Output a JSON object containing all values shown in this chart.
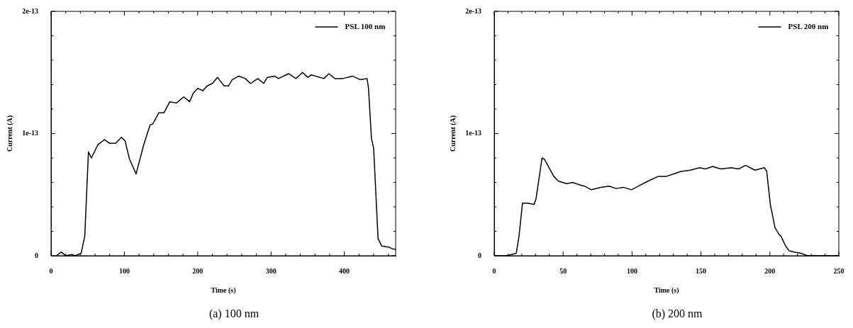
{
  "chart_data": [
    {
      "type": "line",
      "xlabel": "Time (s)",
      "ylabel": "Current (A)",
      "legend": "top right",
      "marker": "none",
      "line_style": "solid",
      "annotations": [
        "(a)  100 nm"
      ],
      "xlim": [
        0,
        470
      ],
      "ylim": [
        0,
        2e-13
      ],
      "xticks": [
        0,
        {
          "value": 20,
          "label": null
        },
        {
          "value": 40,
          "label": null
        },
        {
          "value": 60,
          "label": null
        },
        {
          "value": 80,
          "label": null
        },
        100,
        {
          "value": 120,
          "label": null
        },
        {
          "value": 140,
          "label": null
        },
        {
          "value": 160,
          "label": null
        },
        {
          "value": 180,
          "label": null
        },
        200,
        {
          "value": 220,
          "label": null
        },
        {
          "value": 240,
          "label": null
        },
        {
          "value": 260,
          "label": null
        },
        {
          "value": 280,
          "label": null
        },
        300,
        {
          "value": 320,
          "label": null
        },
        {
          "value": 340,
          "label": null
        },
        {
          "value": 360,
          "label": null
        },
        {
          "value": 380,
          "label": null
        },
        400,
        {
          "value": 420,
          "label": null
        },
        {
          "value": 440,
          "label": null
        },
        {
          "value": 460,
          "label": null
        }
      ],
      "yticks": [
        {
          "value": 0,
          "label": "0"
        },
        {
          "value": 2e-14,
          "label": null
        },
        {
          "value": 4e-14,
          "label": null
        },
        {
          "value": 6e-14,
          "label": null
        },
        {
          "value": 8e-14,
          "label": null
        },
        {
          "value": 1e-13,
          "label": "1e-13"
        },
        {
          "value": 1.2e-13,
          "label": null
        },
        {
          "value": 1.4e-13,
          "label": null
        },
        {
          "value": 1.6e-13,
          "label": null
        },
        {
          "value": 1.8e-13,
          "label": null
        },
        {
          "value": 2e-13,
          "label": "2e-13"
        }
      ],
      "series": [
        {
          "name": "PSL 100 nm",
          "color": "#000000",
          "x": [
            7,
            14,
            20,
            28,
            33,
            41,
            46,
            51,
            55,
            64,
            73,
            80,
            88,
            96,
            101,
            107,
            116,
            126,
            135,
            139,
            147,
            154,
            162,
            171,
            181,
            189,
            194,
            200,
            207,
            213,
            220,
            227,
            236,
            242,
            247,
            256,
            265,
            272,
            282,
            290,
            295,
            305,
            310,
            324,
            334,
            343,
            350,
            355,
            372,
            379,
            387,
            398,
            411,
            422,
            431,
            433,
            437,
            440,
            446,
            451,
            461,
            464,
            470
          ],
          "values": [
            0,
            3e-15,
            0,
            1e-15,
            0,
            2e-15,
            1.6e-14,
            8.5e-14,
            8e-14,
            9.1e-14,
            9.5e-14,
            9.2e-14,
            9.2e-14,
            9.7e-14,
            9.4e-14,
            7.9e-14,
            6.7e-14,
            9e-14,
            1.07e-13,
            1.08e-13,
            1.17e-13,
            1.17e-13,
            1.26e-13,
            1.25e-13,
            1.3e-13,
            1.26e-13,
            1.33e-13,
            1.37e-13,
            1.35e-13,
            1.39e-13,
            1.41e-13,
            1.46e-13,
            1.39e-13,
            1.39e-13,
            1.44e-13,
            1.47e-13,
            1.45e-13,
            1.41e-13,
            1.45e-13,
            1.41e-13,
            1.46e-13,
            1.47e-13,
            1.45e-13,
            1.49e-13,
            1.45e-13,
            1.5e-13,
            1.46e-13,
            1.48e-13,
            1.45e-13,
            1.49e-13,
            1.45e-13,
            1.45e-13,
            1.47e-13,
            1.44e-13,
            1.45e-13,
            1.37e-13,
            9.6e-14,
            8.8e-14,
            1.4e-14,
            8e-15,
            7e-15,
            6e-15,
            5e-15
          ]
        }
      ]
    },
    {
      "type": "line",
      "xlabel": "Time (s)",
      "ylabel": "Current (A)",
      "legend": "top right",
      "marker": "none",
      "line_style": "solid",
      "annotations": [
        "(b)  200 nm"
      ],
      "xlim": [
        0,
        250
      ],
      "ylim": [
        0,
        2e-13
      ],
      "xticks": [
        0,
        {
          "value": 10,
          "label": null
        },
        {
          "value": 20,
          "label": null
        },
        {
          "value": 30,
          "label": null
        },
        {
          "value": 40,
          "label": null
        },
        50,
        {
          "value": 60,
          "label": null
        },
        {
          "value": 70,
          "label": null
        },
        {
          "value": 80,
          "label": null
        },
        {
          "value": 90,
          "label": null
        },
        100,
        {
          "value": 110,
          "label": null
        },
        {
          "value": 120,
          "label": null
        },
        {
          "value": 130,
          "label": null
        },
        {
          "value": 140,
          "label": null
        },
        150,
        {
          "value": 160,
          "label": null
        },
        {
          "value": 170,
          "label": null
        },
        {
          "value": 180,
          "label": null
        },
        {
          "value": 190,
          "label": null
        },
        200,
        {
          "value": 210,
          "label": null
        },
        {
          "value": 220,
          "label": null
        },
        {
          "value": 230,
          "label": null
        },
        {
          "value": 240,
          "label": null
        },
        250
      ],
      "yticks": [
        {
          "value": 0,
          "label": "0"
        },
        {
          "value": 2e-14,
          "label": null
        },
        {
          "value": 4e-14,
          "label": null
        },
        {
          "value": 6e-14,
          "label": null
        },
        {
          "value": 8e-14,
          "label": null
        },
        {
          "value": 1e-13,
          "label": "1e-13"
        },
        {
          "value": 1.2e-13,
          "label": null
        },
        {
          "value": 1.4e-13,
          "label": null
        },
        {
          "value": 1.6e-13,
          "label": null
        },
        {
          "value": 1.8e-13,
          "label": null
        },
        {
          "value": 2e-13,
          "label": "2e-13"
        }
      ],
      "series": [
        {
          "name": "PSL 200 nm",
          "color": "#000000",
          "x": [
            0,
            9,
            16,
            18,
            20.5,
            24,
            29,
            30.4,
            34.7,
            36.4,
            39.8,
            43.2,
            46.6,
            52.6,
            56.9,
            62,
            65.4,
            70.5,
            77.4,
            83.3,
            88.5,
            93.6,
            99.6,
            104.7,
            111.5,
            119.2,
            125,
            130.3,
            135.4,
            142.2,
            149,
            153.3,
            158.4,
            164.4,
            172,
            177.3,
            182.4,
            189.2,
            196,
            197.7,
            200.3,
            203.7,
            206.3,
            208,
            211.4,
            214,
            217.4,
            222.5,
            227.3,
            250
          ],
          "values": [
            0,
            0,
            2e-15,
            1.6e-14,
            4.3e-14,
            4.3e-14,
            4.2e-14,
            4.7e-14,
            8e-14,
            7.9e-14,
            7.2e-14,
            6.5e-14,
            6.1e-14,
            5.9e-14,
            6e-14,
            5.8e-14,
            5.7e-14,
            5.4e-14,
            5.6e-14,
            5.7e-14,
            5.5e-14,
            5.6e-14,
            5.4e-14,
            5.7e-14,
            6.1e-14,
            6.5e-14,
            6.5e-14,
            6.7e-14,
            6.9e-14,
            7e-14,
            7.2e-14,
            7.1e-14,
            7.3e-14,
            7.1e-14,
            7.2e-14,
            7.1e-14,
            7.4e-14,
            7e-14,
            7.2e-14,
            6.9e-14,
            4.2e-14,
            2.3e-14,
            1.8e-14,
            1.6e-14,
            8e-15,
            4e-15,
            3e-15,
            2e-15,
            0,
            0
          ]
        }
      ]
    }
  ]
}
